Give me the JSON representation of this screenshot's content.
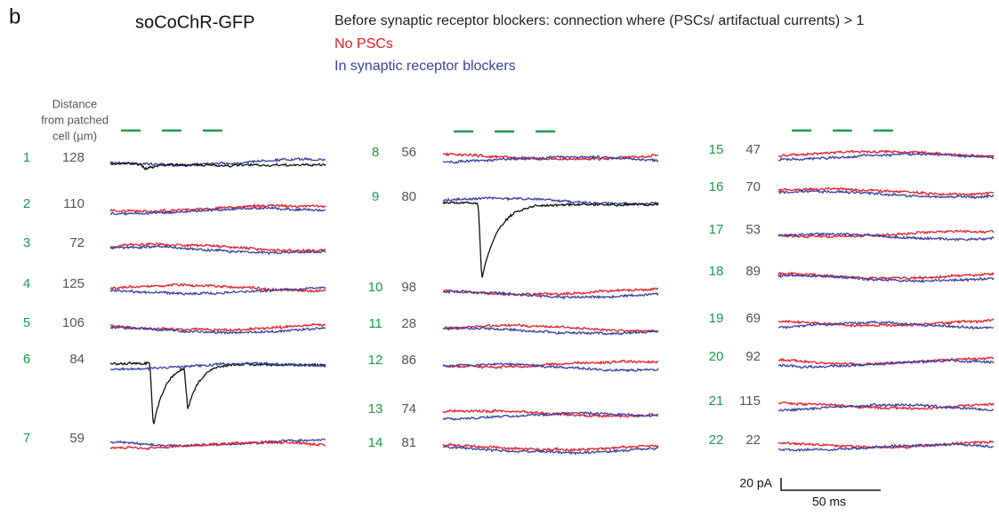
{
  "panel_label": "b",
  "title": "soCoChR-GFP",
  "legend": [
    {
      "text": "Before synaptic receptor blockers: connection where (PSCs/ artifactual currents) > 1",
      "color": "#222222"
    },
    {
      "text": "No PSCs",
      "color": "#e0202a"
    },
    {
      "text": "In synaptic receptor blockers",
      "color": "#3a3fa0"
    }
  ],
  "column_header": [
    "Distance",
    "from patched",
    "cell (µm)"
  ],
  "cells": [
    {
      "id": 1,
      "distance": 128,
      "traces": [
        "#3a3fa0",
        "#111111"
      ]
    },
    {
      "id": 2,
      "distance": 110,
      "traces": [
        "#e0202a",
        "#3a3fa0"
      ]
    },
    {
      "id": 3,
      "distance": 72,
      "traces": [
        "#e0202a",
        "#3a3fa0"
      ]
    },
    {
      "id": 4,
      "distance": 125,
      "traces": [
        "#e0202a",
        "#3a3fa0"
      ]
    },
    {
      "id": 5,
      "distance": 106,
      "traces": [
        "#e0202a",
        "#3a3fa0"
      ]
    },
    {
      "id": 6,
      "distance": 84,
      "traces": [
        "#111111",
        "#3a3fa0"
      ]
    },
    {
      "id": 7,
      "distance": 59,
      "traces": [
        "#3a3fa0",
        "#e0202a"
      ]
    },
    {
      "id": 8,
      "distance": 56,
      "traces": [
        "#e0202a",
        "#3a3fa0"
      ]
    },
    {
      "id": 9,
      "distance": 80,
      "traces": [
        "#3a3fa0",
        "#111111"
      ]
    },
    {
      "id": 10,
      "distance": 98,
      "traces": [
        "#e0202a",
        "#3a3fa0"
      ]
    },
    {
      "id": 11,
      "distance": 28,
      "traces": [
        "#e0202a",
        "#3a3fa0"
      ]
    },
    {
      "id": 12,
      "distance": 86,
      "traces": [
        "#e0202a",
        "#3a3fa0"
      ]
    },
    {
      "id": 13,
      "distance": 74,
      "traces": [
        "#e0202a",
        "#3a3fa0"
      ]
    },
    {
      "id": 14,
      "distance": 81,
      "traces": [
        "#e0202a",
        "#3a3fa0"
      ]
    },
    {
      "id": 15,
      "distance": 47,
      "traces": [
        "#e0202a",
        "#3a3fa0"
      ]
    },
    {
      "id": 16,
      "distance": 70,
      "traces": [
        "#e0202a",
        "#3a3fa0"
      ]
    },
    {
      "id": 17,
      "distance": 53,
      "traces": [
        "#e0202a",
        "#3a3fa0"
      ]
    },
    {
      "id": 18,
      "distance": 89,
      "traces": [
        "#e0202a",
        "#3a3fa0"
      ]
    },
    {
      "id": 19,
      "distance": 69,
      "traces": [
        "#e0202a",
        "#3a3fa0"
      ]
    },
    {
      "id": 20,
      "distance": 92,
      "traces": [
        "#e0202a",
        "#3a3fa0"
      ]
    },
    {
      "id": 21,
      "distance": 115,
      "traces": [
        "#e0202a",
        "#3a3fa0"
      ]
    },
    {
      "id": 22,
      "distance": 22,
      "traces": [
        "#e0202a",
        "#3a3fa0"
      ]
    }
  ],
  "scale_bar": {
    "y": "20 pA",
    "x": "50 ms"
  }
}
